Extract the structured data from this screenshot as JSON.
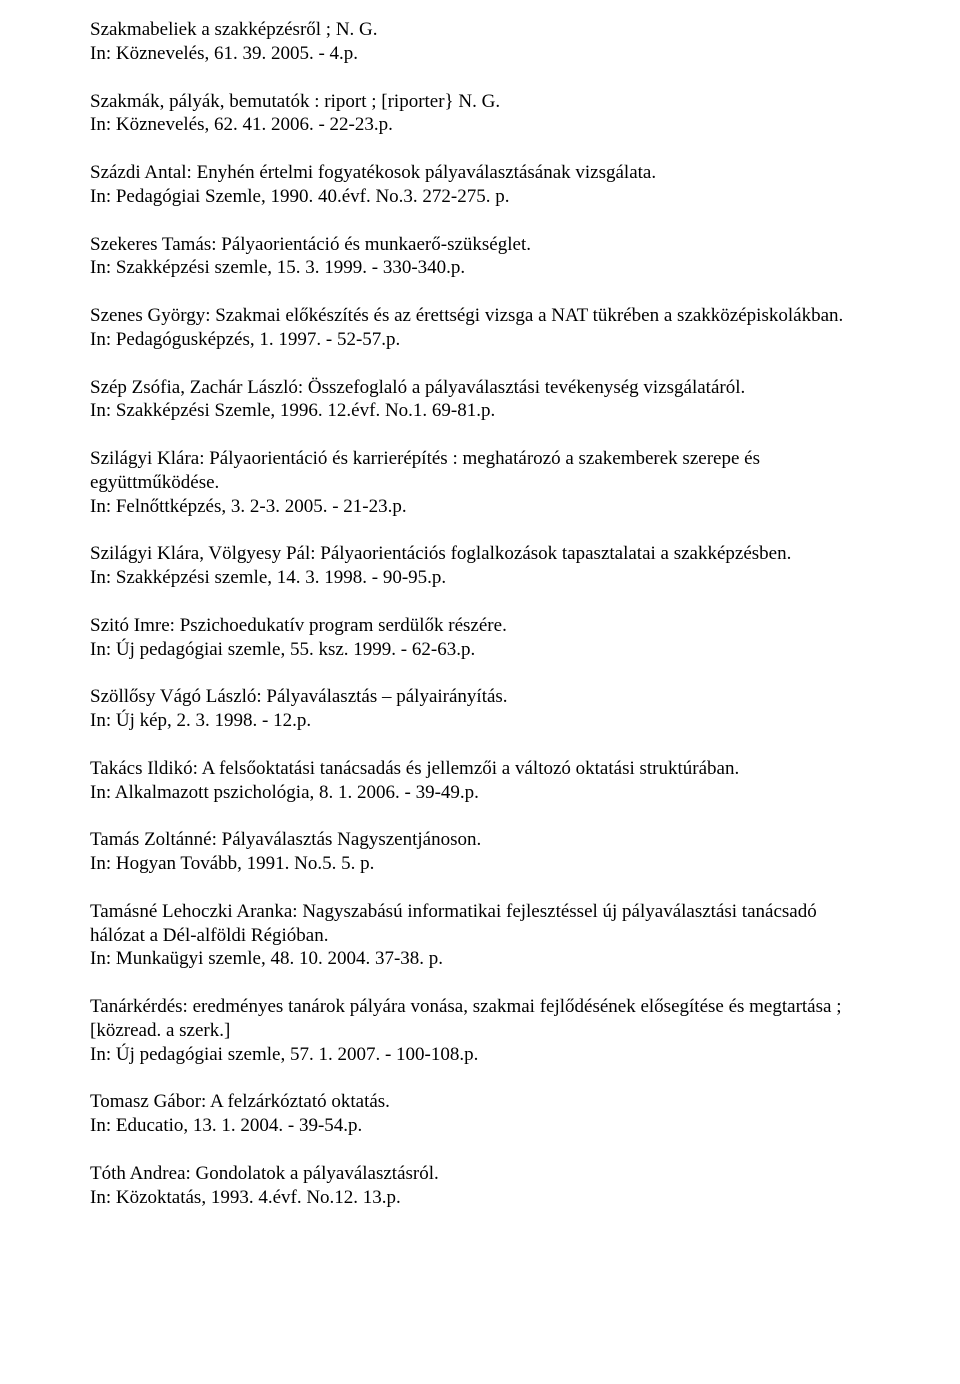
{
  "font_family": "Times New Roman",
  "font_size_pt": 14,
  "text_color": "#000000",
  "background_color": "#ffffff",
  "line_height": 1.25,
  "entries": [
    {
      "lines": [
        "Szakmabeliek a szakképzésről ; N. G.",
        "In: Köznevelés, 61. 39. 2005. - 4.p."
      ]
    },
    {
      "lines": [
        "Szakmák, pályák, bemutatók : riport ; [riporter} N. G.",
        "In: Köznevelés, 62. 41. 2006. - 22-23.p."
      ]
    },
    {
      "lines": [
        "Százdi Antal: Enyhén értelmi fogyatékosok pályaválasztásának vizsgálata.",
        "In: Pedagógiai Szemle, 1990. 40.évf.  No.3. 272-275. p."
      ]
    },
    {
      "lines": [
        "Szekeres Tamás: Pályaorientáció és munkaerő-szükséglet.",
        "In: Szakképzési szemle, 15. 3. 1999. - 330-340.p."
      ]
    },
    {
      "lines": [
        "Szenes György: Szakmai előkészítés és az érettségi vizsga a NAT tükrében a szakközépiskolákban.",
        "In: Pedagógusképzés, 1. 1997. - 52-57.p."
      ]
    },
    {
      "lines": [
        "Szép Zsófia, Zachár László: Összefoglaló a pályaválasztási tevékenység vizsgálatáról.",
        "In: Szakképzési Szemle, 1996.  12.évf.  No.1. 69-81.p."
      ]
    },
    {
      "lines": [
        "Szilágyi Klára: Pályaorientáció és karrierépítés : meghatározó a szakemberek szerepe és együttműködése.",
        "In: Felnőttképzés, 3. 2-3. 2005. - 21-23.p."
      ]
    },
    {
      "lines": [
        "Szilágyi Klára, Völgyesy Pál: Pályaorientációs foglalkozások tapasztalatai a szakképzésben.",
        "In: Szakképzési szemle, 14. 3. 1998. - 90-95.p."
      ]
    },
    {
      "lines": [
        "Szitó Imre: Pszichoedukatív program serdülők részére.",
        "In: Új pedagógiai szemle, 55. ksz. 1999. - 62-63.p."
      ]
    },
    {
      "lines": [
        "Szöllősy Vágó László: Pályaválasztás – pályairányítás.",
        "In: Új kép, 2. 3. 1998. - 12.p."
      ]
    },
    {
      "lines": [
        "Takács Ildikó: A felsőoktatási tanácsadás és jellemzői a változó oktatási struktúrában.",
        "In: Alkalmazott pszichológia, 8. 1. 2006. - 39-49.p."
      ]
    },
    {
      "lines": [
        "Tamás Zoltánné: Pályaválasztás Nagyszentjánoson.",
        "In: Hogyan Tovább, 1991.  No.5. 5. p."
      ]
    },
    {
      "lines": [
        "Tamásné Lehoczki Aranka: Nagyszabású informatikai fejlesztéssel új pályaválasztási tanácsadó hálózat a Dél-alföldi Régióban.",
        "In: Munkaügyi szemle, 48. 10. 2004. 37-38. p."
      ]
    },
    {
      "lines": [
        "Tanárkérdés: eredményes tanárok pályára vonása, szakmai fejlődésének elősegítése és megtartása ; [közread. a szerk.]",
        "In: Új pedagógiai szemle, 57. 1. 2007. - 100-108.p."
      ]
    },
    {
      "lines": [
        "Tomasz Gábor: A felzárkóztató oktatás.",
        "In: Educatio, 13. 1. 2004. - 39-54.p."
      ]
    },
    {
      "lines": [
        "Tóth Andrea: Gondolatok a pályaválasztásról.",
        "In: Közoktatás, 1993.   4.évf.  No.12. 13.p."
      ]
    }
  ]
}
